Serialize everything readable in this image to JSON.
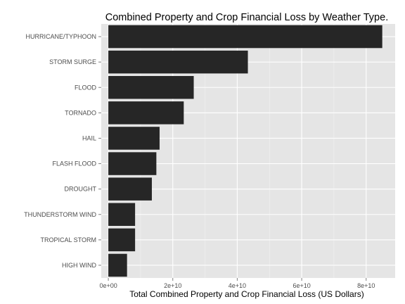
{
  "chart_data": {
    "type": "bar",
    "orientation": "horizontal",
    "title": "Combined Property and Crop Financial Loss by Weather Type.",
    "xlabel": "Total Combined Property and Crop Financial Loss (US Dollars)",
    "ylabel": "",
    "categories": [
      "HURRICANE/TYPHOON",
      "STORM SURGE",
      "FLOOD",
      "TORNADO",
      "HAIL",
      "FLASH FLOOD",
      "DROUGHT",
      "THUNDERSTORM WIND",
      "TROPICAL STORM",
      "HIGH WIND"
    ],
    "values": [
      85000000000,
      43300000000,
      26500000000,
      23400000000,
      15900000000,
      14900000000,
      13500000000,
      8300000000,
      8300000000,
      5800000000
    ],
    "xlim": [
      -2200000000,
      89000000000
    ],
    "xticks": [
      0,
      20000000000,
      40000000000,
      60000000000,
      80000000000
    ],
    "xtick_labels": [
      "0e+00",
      "2e+10",
      "4e+10",
      "6e+10",
      "8e+10"
    ],
    "grid": true,
    "legend": "none",
    "colors": {
      "panel": "#e5e5e5",
      "grid_major": "#ffffff",
      "grid_minor": "#f2f2f2",
      "bar": "#262626",
      "tick_text": "#4d4d4d",
      "tick_mark": "#7f7f7f"
    }
  }
}
